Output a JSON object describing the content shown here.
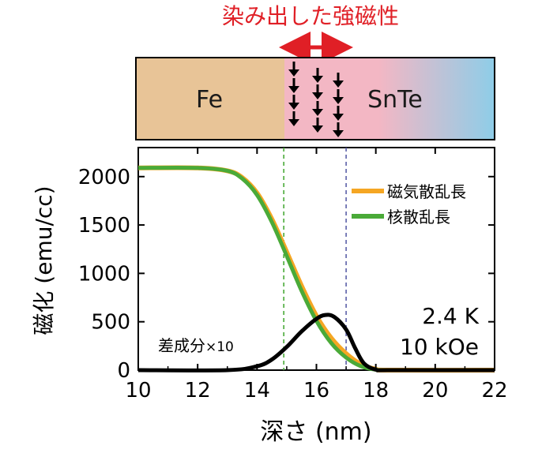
{
  "header_label": "染み出した強磁性",
  "layers": {
    "left": "Fe",
    "right": "SnTe"
  },
  "colors": {
    "fe": "#e8c497",
    "proximity": "#f3b7c4",
    "snte": "#8ecde8",
    "magnetic": "#f5a623",
    "nuclear": "#4aaa38",
    "difference": "#000000",
    "arrow_red": "#e01f26",
    "dash_green": "#4aaa38",
    "dash_blue": "#5b5fa8"
  },
  "conditions": [
    "2.4 K",
    "10 kOe"
  ],
  "difference_label": "差成分",
  "difference_scale": "×10",
  "chart_data": {
    "type": "line",
    "xlabel": "深さ (nm)",
    "ylabel": "磁化 (emu/cc)",
    "xlim": [
      10,
      22
    ],
    "ylim": [
      0,
      2300
    ],
    "xticks": [
      10,
      12,
      14,
      16,
      18,
      20,
      22
    ],
    "yticks": [
      0,
      500,
      1000,
      1500,
      2000
    ],
    "vlines": [
      14.9,
      17.0
    ],
    "legend_position": "top-right",
    "series": [
      {
        "name": "磁気散乱長",
        "x": [
          10,
          12,
          13,
          13.5,
          14,
          14.5,
          15,
          15.5,
          16,
          16.5,
          17,
          17.5,
          18,
          18.5,
          22
        ],
        "y": [
          2090,
          2090,
          2060,
          1990,
          1830,
          1560,
          1220,
          870,
          560,
          330,
          170,
          60,
          10,
          0,
          0
        ]
      },
      {
        "name": "核散乱長",
        "x": [
          10,
          12,
          13,
          13.5,
          14,
          14.5,
          15,
          15.5,
          16,
          16.5,
          17,
          17.5,
          18,
          18.5,
          22
        ],
        "y": [
          2090,
          2090,
          2060,
          1980,
          1810,
          1530,
          1180,
          820,
          510,
          280,
          130,
          40,
          5,
          0,
          0
        ]
      },
      {
        "name": "差成分×10",
        "x": [
          10,
          13,
          14,
          14.5,
          15,
          15.5,
          16,
          16.3,
          16.6,
          17,
          17.3,
          17.6,
          18,
          18.5,
          22
        ],
        "y": [
          0,
          0,
          40,
          110,
          240,
          400,
          530,
          570,
          550,
          420,
          230,
          70,
          5,
          0,
          0
        ]
      }
    ]
  }
}
